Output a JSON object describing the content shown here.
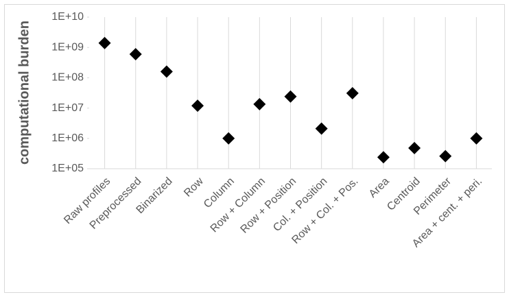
{
  "chart_data": {
    "type": "scatter",
    "y_label": "computational burden",
    "categories": [
      "Raw profiles",
      "Preprocessed",
      "Binarized",
      "Row",
      "Column",
      "Row + Column",
      "Row + Position",
      "Col. + Position",
      "Row + Col. + Pos.",
      "Area",
      "Centroid",
      "Perimeter",
      "Area + cent. + peri."
    ],
    "values": [
      1400000000,
      600000000,
      160000000,
      12000000,
      1000000,
      13500000,
      24000000,
      2100000,
      31000000,
      240000,
      480000,
      260000,
      1000000
    ],
    "color": "#000000",
    "ylog": true,
    "ylim": [
      100000,
      10000000000
    ],
    "yticks": [
      {
        "value": 100000,
        "label": "1E+05"
      },
      {
        "value": 1000000,
        "label": "1E+06"
      },
      {
        "value": 10000000,
        "label": "1E+07"
      },
      {
        "value": 100000000,
        "label": "1E+08"
      },
      {
        "value": 1000000000,
        "label": "1E+09"
      },
      {
        "value": 10000000000,
        "label": "1E+10"
      }
    ],
    "grid": true
  }
}
